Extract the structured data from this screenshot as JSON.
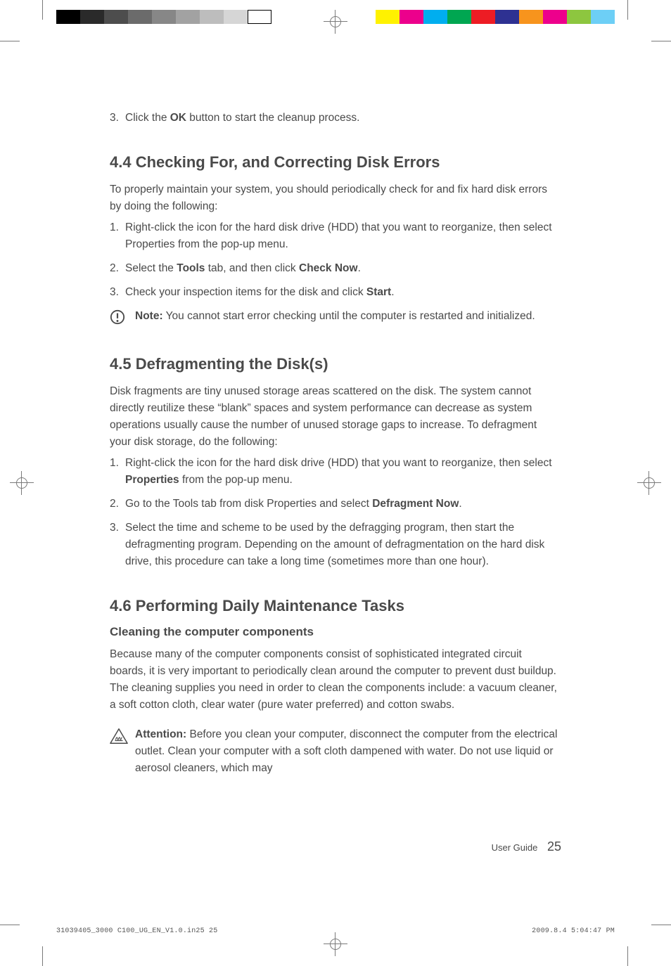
{
  "colorbar_left": [
    "#000000",
    "#2a2a2a",
    "#4d4d4d",
    "#6b6b6b",
    "#878787",
    "#a2a2a2",
    "#bdbdbd",
    "#d6d6d6",
    "#ffffff"
  ],
  "colorbar_right": [
    "#fff200",
    "#ec008c",
    "#00aeef",
    "#00a651",
    "#ed1c24",
    "#2e3192",
    "#f7941d",
    "#ed008c",
    "#8dc63f",
    "#6dcff6"
  ],
  "bar_left_border": "#000000",
  "step3_pre": "3.",
  "step3_text_a": "Click the ",
  "step3_bold": "OK",
  "step3_text_b": " button to start the cleanup process.",
  "sec44_title": "4.4 Checking For, and Correcting Disk Errors",
  "sec44_intro": "To properly maintain your system, you should periodically check for and fix hard disk errors by doing the following:",
  "sec44_items": [
    {
      "n": "1.",
      "parts": [
        {
          "t": "Right-click the icon for the hard disk drive (HDD) that you want to reorganize, then select Properties from the pop-up menu."
        }
      ]
    },
    {
      "n": "2.",
      "parts": [
        {
          "t": "Select the "
        },
        {
          "b": "Tools"
        },
        {
          "t": " tab, and then click "
        },
        {
          "b": "Check Now"
        },
        {
          "t": "."
        }
      ]
    },
    {
      "n": "3.",
      "parts": [
        {
          "t": "Check your inspection items for the disk and click "
        },
        {
          "b": "Start"
        },
        {
          "t": "."
        }
      ]
    }
  ],
  "sec44_note_label": "Note:",
  "sec44_note_text": " You cannot start error checking until the computer is restarted and initialized.",
  "sec45_title": "4.5 Defragmenting the Disk(s)",
  "sec45_intro": "Disk fragments are tiny unused storage areas scattered on the disk. The system cannot directly reutilize these “blank” spaces and system performance can decrease as system operations usually cause the number of unused storage gaps to increase. To defragment your disk storage, do the following:",
  "sec45_items": [
    {
      "n": "1.",
      "parts": [
        {
          "t": "Right-click the icon for the hard disk drive (HDD) that you want to reorganize, then select "
        },
        {
          "b": "Properties"
        },
        {
          "t": " from the pop-up menu."
        }
      ]
    },
    {
      "n": "2.",
      "parts": [
        {
          "t": "Go to the Tools tab from disk Properties and select "
        },
        {
          "b": "Defragment Now"
        },
        {
          "t": "."
        }
      ]
    },
    {
      "n": "3.",
      "parts": [
        {
          "t": "Select the time and scheme to be used by the defragging program, then start the defragmenting program. Depending on the amount of defragmentation on the hard disk drive, this procedure can take a long time (sometimes more than one hour)."
        }
      ]
    }
  ],
  "sec46_title": "4.6 Performing Daily Maintenance Tasks",
  "sec46_sub": "Cleaning the computer components",
  "sec46_para": "Because many of the computer components consist of sophisticated integrated circuit boards, it is very important to periodically clean around the computer to prevent dust buildup. The cleaning supplies you need in order to clean the components include: a vacuum cleaner, a soft cotton cloth, clear water (pure water preferred) and cotton swabs.",
  "sec46_attn_label": "Attention:",
  "sec46_attn_text": " Before you clean your computer, disconnect the computer from the electrical outlet. Clean your computer with a soft cloth dampened with water. Do not use liquid or aerosol cleaners, which may",
  "footer_label": "User Guide",
  "page_number": "25",
  "slug_left": "31039405_3000 C100_UG_EN_V1.0.in25   25",
  "slug_right": "2009.8.4   5:04:47 PM",
  "heading_color": "#4a4a4a",
  "body_font_size": 15.5,
  "icon_stroke": "#4a4a4a"
}
